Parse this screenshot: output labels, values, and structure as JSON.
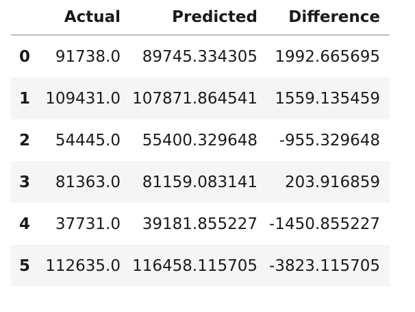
{
  "dataframe": {
    "columns": [
      "Actual",
      "Predicted",
      "Difference"
    ],
    "rows": [
      {
        "index": "0",
        "actual": "91738.0",
        "predicted": "89745.334305",
        "difference": "1992.665695"
      },
      {
        "index": "1",
        "actual": "109431.0",
        "predicted": "107871.864541",
        "difference": "1559.135459"
      },
      {
        "index": "2",
        "actual": "54445.0",
        "predicted": "55400.329648",
        "difference": "-955.329648"
      },
      {
        "index": "3",
        "actual": "81363.0",
        "predicted": "81159.083141",
        "difference": "203.916859"
      },
      {
        "index": "4",
        "actual": "37731.0",
        "predicted": "39181.855227",
        "difference": "-1450.855227"
      },
      {
        "index": "5",
        "actual": "112635.0",
        "predicted": "116458.115705",
        "difference": "-3823.115705"
      }
    ]
  }
}
